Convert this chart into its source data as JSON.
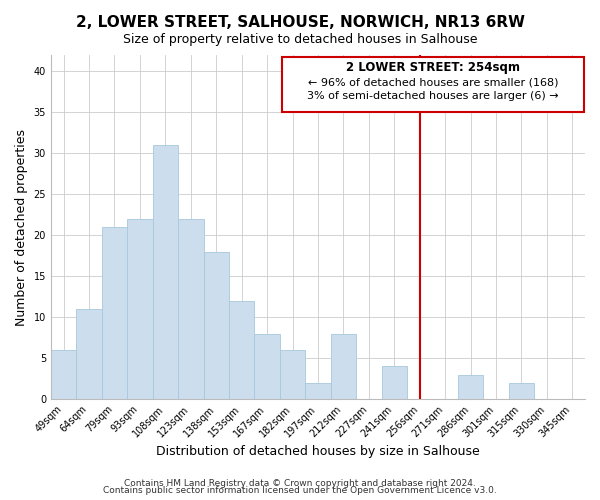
{
  "title": "2, LOWER STREET, SALHOUSE, NORWICH, NR13 6RW",
  "subtitle": "Size of property relative to detached houses in Salhouse",
  "xlabel": "Distribution of detached houses by size in Salhouse",
  "ylabel": "Number of detached properties",
  "bar_labels": [
    "49sqm",
    "64sqm",
    "79sqm",
    "93sqm",
    "108sqm",
    "123sqm",
    "138sqm",
    "153sqm",
    "167sqm",
    "182sqm",
    "197sqm",
    "212sqm",
    "227sqm",
    "241sqm",
    "256sqm",
    "271sqm",
    "286sqm",
    "301sqm",
    "315sqm",
    "330sqm",
    "345sqm"
  ],
  "bar_heights": [
    6,
    11,
    21,
    22,
    31,
    22,
    18,
    12,
    8,
    6,
    2,
    8,
    0,
    4,
    0,
    0,
    3,
    0,
    2,
    0,
    0
  ],
  "bar_color": "#ccdded",
  "bar_edge_color": "#a8c8de",
  "vline_idx": 14,
  "vline_color": "#cc0000",
  "annotation_title": "2 LOWER STREET: 254sqm",
  "annotation_line1": "← 96% of detached houses are smaller (168)",
  "annotation_line2": "3% of semi-detached houses are larger (6) →",
  "annotation_box_color": "#ffffff",
  "annotation_box_edge": "#cc0000",
  "ylim": [
    0,
    42
  ],
  "yticks": [
    0,
    5,
    10,
    15,
    20,
    25,
    30,
    35,
    40
  ],
  "footer1": "Contains HM Land Registry data © Crown copyright and database right 2024.",
  "footer2": "Contains public sector information licensed under the Open Government Licence v3.0.",
  "title_fontsize": 11,
  "subtitle_fontsize": 9,
  "xlabel_fontsize": 9,
  "ylabel_fontsize": 9,
  "tick_fontsize": 7,
  "footer_fontsize": 6.5,
  "annotation_title_fontsize": 8.5,
  "annotation_text_fontsize": 8
}
